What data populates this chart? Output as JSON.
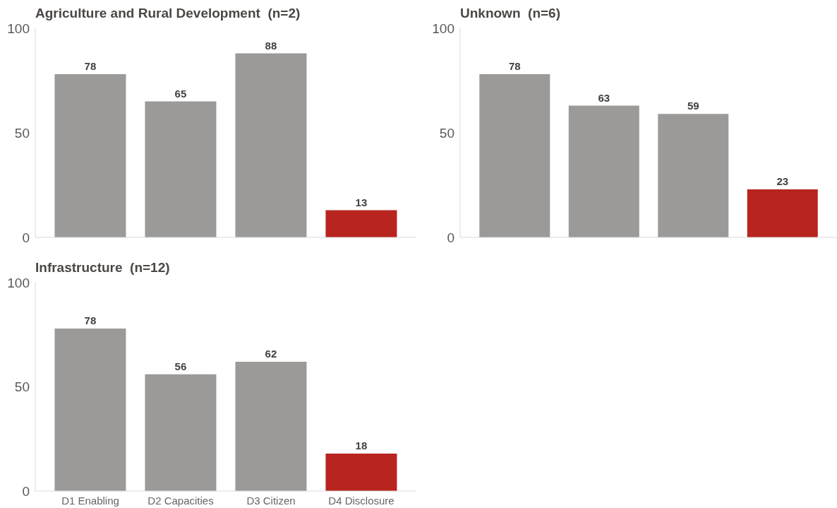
{
  "chart_data": [
    {
      "type": "bar",
      "title": "Agriculture and Rural Development  (n=2)",
      "categories": [
        null,
        null,
        null,
        null
      ],
      "values": [
        78,
        65,
        88,
        13
      ],
      "colors": [
        "#9b9a98",
        "#9b9a98",
        "#9b9a98",
        "#b8241e"
      ],
      "ylim": [
        0,
        100
      ],
      "yticks": [
        0,
        50,
        100
      ],
      "data_labels": true,
      "tick_labels": "y"
    },
    {
      "type": "bar",
      "title": "Unknown  (n=6)",
      "categories": [
        null,
        null,
        null,
        null
      ],
      "values": [
        78,
        63,
        59,
        23
      ],
      "colors": [
        "#9b9a98",
        "#9b9a98",
        "#9b9a98",
        "#b8241e"
      ],
      "ylim": [
        0,
        100
      ],
      "yticks": [
        0,
        50,
        100
      ],
      "data_labels": true,
      "tick_labels": "y"
    },
    {
      "type": "bar",
      "title": "Infrastructure  (n=12)",
      "categories": [
        "D1 Enabling",
        "D2 Capacities",
        "D3 Citizen",
        "D4 Disclosure"
      ],
      "values": [
        78,
        56,
        62,
        18
      ],
      "colors": [
        "#9b9a98",
        "#9b9a98",
        "#9b9a98",
        "#b8241e"
      ],
      "ylim": [
        0,
        100
      ],
      "yticks": [
        0,
        50,
        100
      ],
      "data_labels": true
    }
  ]
}
